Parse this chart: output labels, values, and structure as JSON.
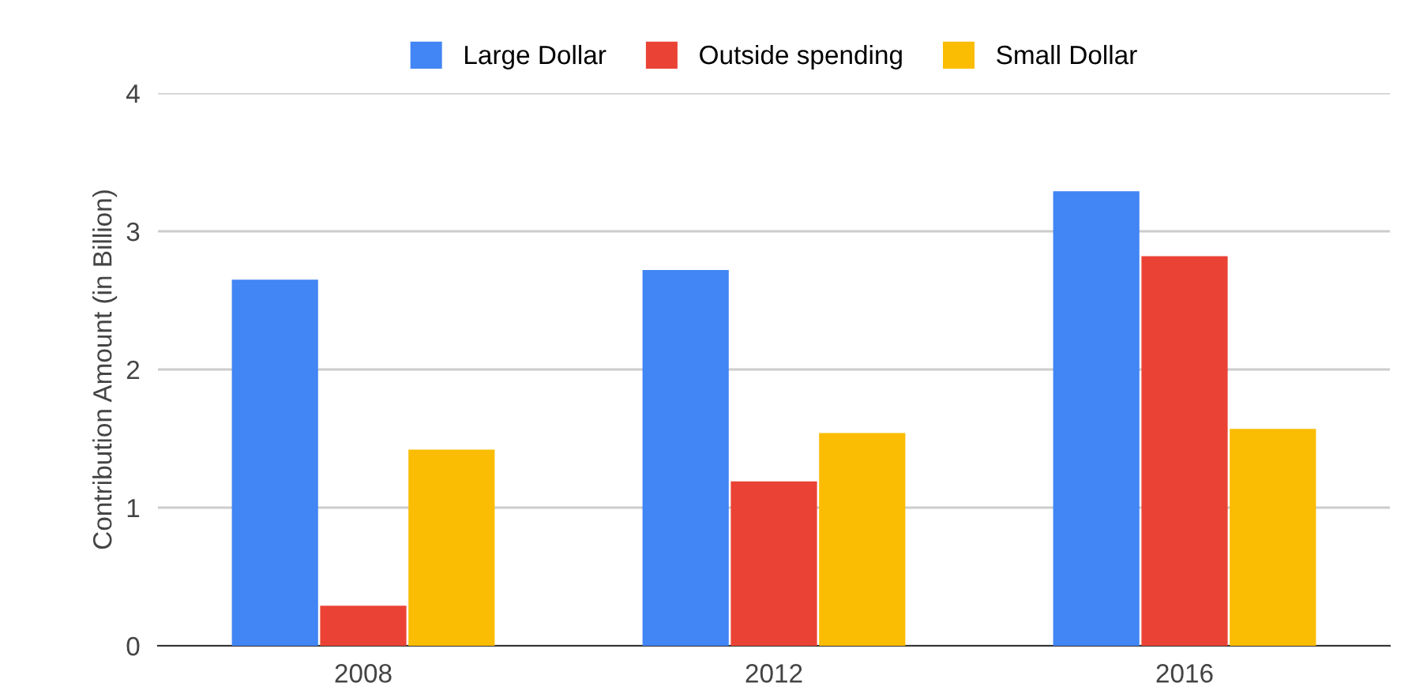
{
  "chart_data": {
    "type": "bar",
    "ylabel": "Contribution Amount (in Billion)",
    "categories": [
      "2008",
      "2012",
      "2016"
    ],
    "series": [
      {
        "name": "Large Dollar",
        "color": "#4285f4",
        "values": [
          2.65,
          2.72,
          3.29
        ]
      },
      {
        "name": "Outside spending",
        "color": "#ea4335",
        "values": [
          0.29,
          1.19,
          2.82
        ]
      },
      {
        "name": "Small Dollar",
        "color": "#fbbc04",
        "values": [
          1.42,
          1.54,
          1.57
        ]
      }
    ],
    "ylim": [
      0,
      4
    ],
    "yticks": [
      0,
      1,
      2,
      3,
      4
    ],
    "grid": "y",
    "legend": "top"
  }
}
